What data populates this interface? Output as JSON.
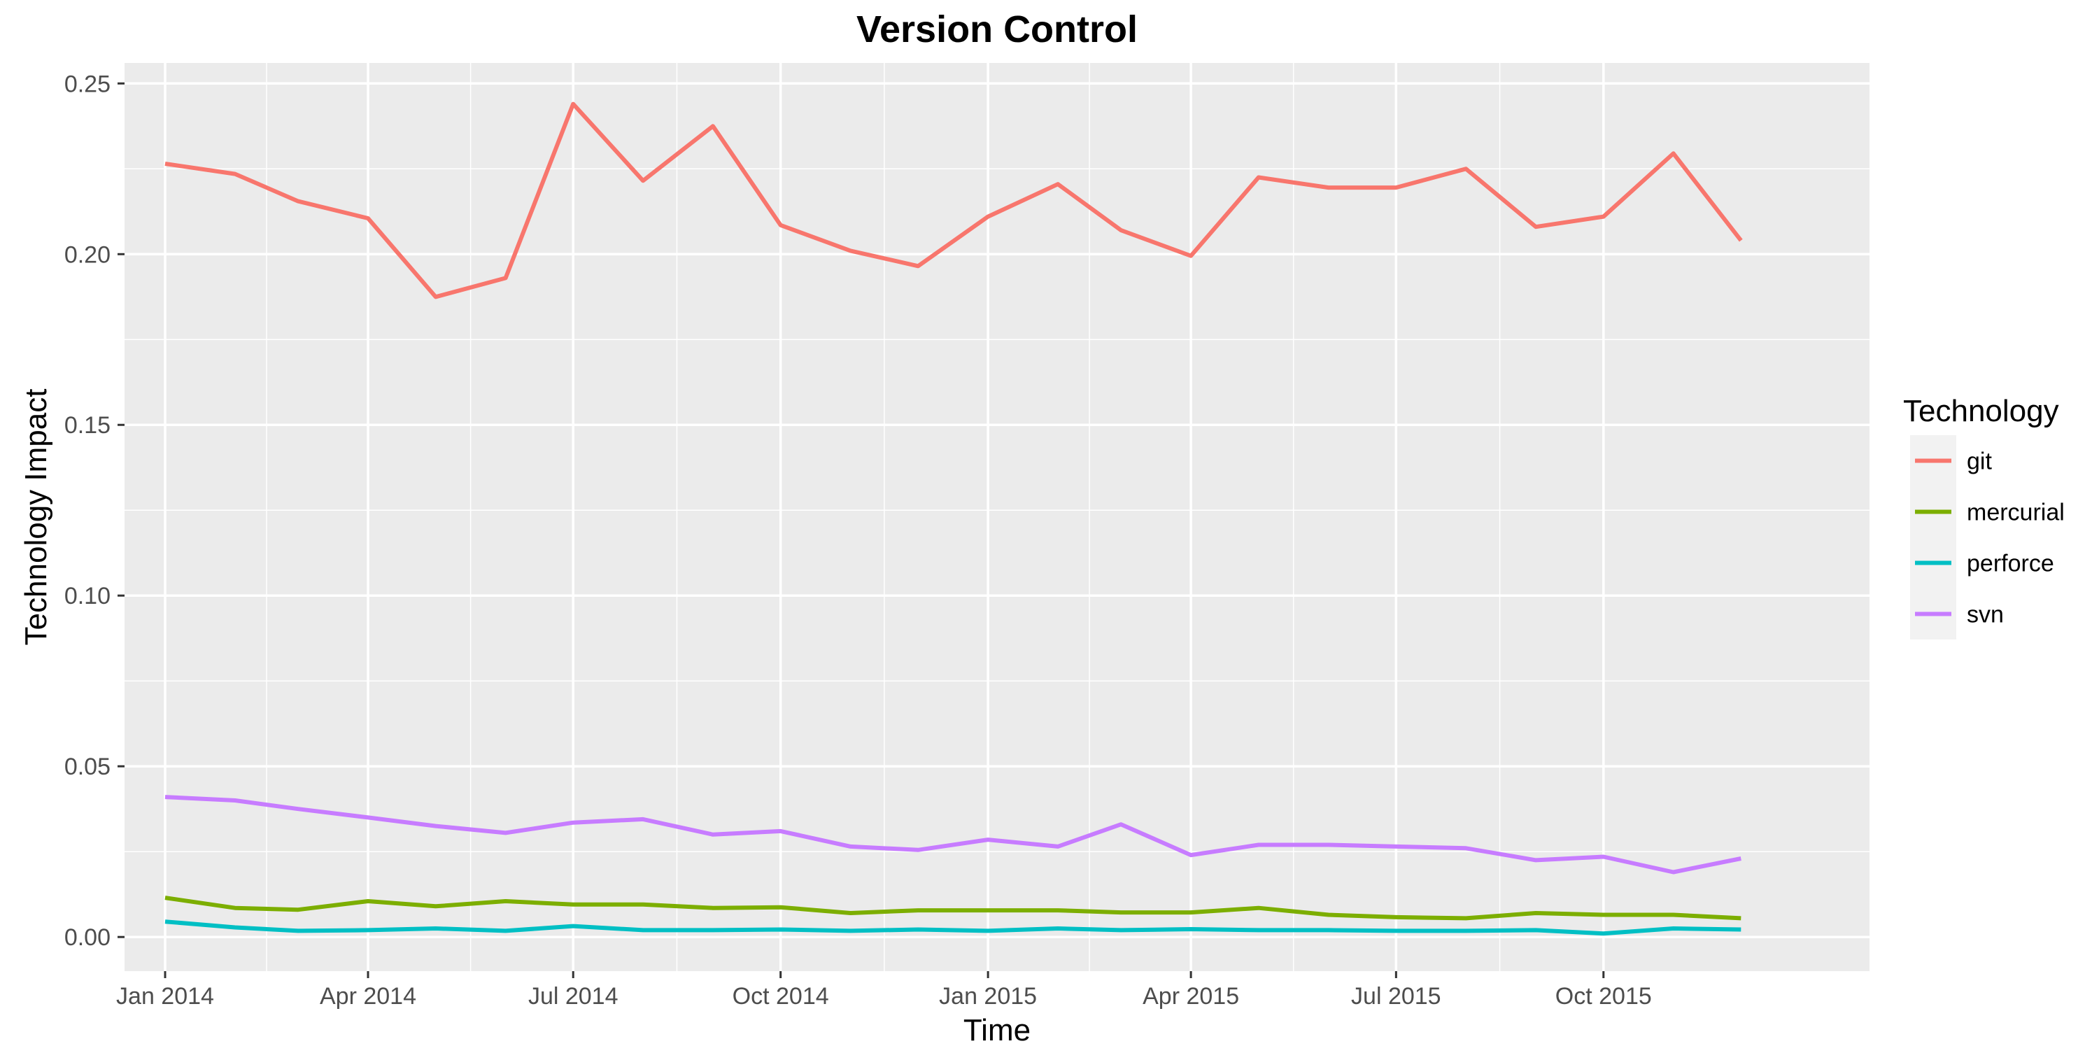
{
  "chart_data": {
    "type": "line",
    "title": "Version Control",
    "xlabel": "Time",
    "ylabel": "Technology Impact",
    "legend_title": "Technology",
    "legend_position": "right",
    "grid": true,
    "ylim": [
      -0.01,
      0.256
    ],
    "y_ticks": [
      0.0,
      0.05,
      0.1,
      0.15,
      0.2,
      0.25
    ],
    "y_tick_labels": [
      "0.00",
      "0.05",
      "0.10",
      "0.15",
      "0.20",
      "0.25"
    ],
    "xlim": [
      "2013-12-14",
      "2016-01-27"
    ],
    "x_ticks": [
      "2014-01-01",
      "2014-04-01",
      "2014-07-01",
      "2014-10-01",
      "2015-01-01",
      "2015-04-01",
      "2015-07-01",
      "2015-10-01"
    ],
    "x_tick_labels": [
      "Jan 2014",
      "Apr 2014",
      "Jul 2014",
      "Oct 2014",
      "Jan 2015",
      "Apr 2015",
      "Jul 2015",
      "Oct 2015"
    ],
    "x": [
      "2014-01-01",
      "2014-02-01",
      "2014-03-01",
      "2014-04-01",
      "2014-05-01",
      "2014-06-01",
      "2014-07-01",
      "2014-08-01",
      "2014-09-01",
      "2014-10-01",
      "2014-11-01",
      "2014-12-01",
      "2015-01-01",
      "2015-02-01",
      "2015-03-01",
      "2015-04-01",
      "2015-05-01",
      "2015-06-01",
      "2015-07-01",
      "2015-08-01",
      "2015-09-01",
      "2015-10-01",
      "2015-11-01",
      "2015-12-01"
    ],
    "series": [
      {
        "name": "git",
        "color": "#F8766D",
        "values": [
          0.2265,
          0.2235,
          0.2155,
          0.2105,
          0.1875,
          0.193,
          0.244,
          0.2215,
          0.2375,
          0.2085,
          0.201,
          0.1965,
          0.211,
          0.2205,
          0.207,
          0.1995,
          0.2225,
          0.2195,
          0.2195,
          0.225,
          0.208,
          0.211,
          0.2295,
          0.204
        ]
      },
      {
        "name": "mercurial",
        "color": "#7CAE00",
        "values": [
          0.0115,
          0.0085,
          0.008,
          0.0105,
          0.009,
          0.0105,
          0.0095,
          0.0095,
          0.0085,
          0.0087,
          0.007,
          0.0078,
          0.0078,
          0.0078,
          0.0072,
          0.0072,
          0.0085,
          0.0065,
          0.0058,
          0.0055,
          0.007,
          0.0065,
          0.0065,
          0.0055
        ]
      },
      {
        "name": "perforce",
        "color": "#00BFC4",
        "values": [
          0.0045,
          0.0028,
          0.0018,
          0.002,
          0.0025,
          0.0018,
          0.0032,
          0.002,
          0.002,
          0.0022,
          0.0018,
          0.0022,
          0.0018,
          0.0025,
          0.002,
          0.0023,
          0.002,
          0.002,
          0.0018,
          0.0018,
          0.002,
          0.001,
          0.0025,
          0.0022
        ]
      },
      {
        "name": "svn",
        "color": "#C77CFF",
        "values": [
          0.041,
          0.04,
          0.0375,
          0.035,
          0.0325,
          0.0305,
          0.0335,
          0.0345,
          0.03,
          0.031,
          0.0265,
          0.0255,
          0.0285,
          0.0265,
          0.033,
          0.024,
          0.027,
          0.027,
          0.0265,
          0.026,
          0.0225,
          0.0235,
          0.019,
          0.023
        ]
      }
    ]
  }
}
